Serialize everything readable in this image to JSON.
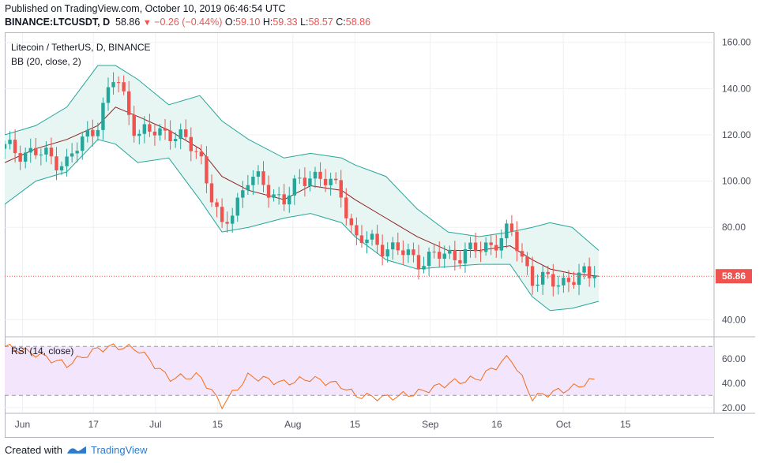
{
  "header": {
    "published": "Published on TradingView.com, October 10, 2019 06:46:54 UTC",
    "symbol": "BINANCE:LTCUSDT, D",
    "last": "58.86",
    "change": "−0.26 (−0.44%)",
    "o_label": "O:",
    "o_value": "59.10",
    "h_label": "H:",
    "h_value": "59.33",
    "l_label": "L:",
    "l_value": "58.57",
    "c_label": "C:",
    "c_value": "58.86"
  },
  "panes": {
    "main_title": "Litecoin / TetherUS, D, BINANCE",
    "bb_label": "BB (20, close, 2)",
    "rsi_label": "RSI (14, close)"
  },
  "footer": {
    "created_with": "Created with",
    "brand": "TradingView"
  },
  "colors": {
    "up": "#26a69a",
    "down": "#ef5350",
    "band_fill": "#e7f6f3",
    "band_line": "#26a69a",
    "basis": "#8d1f1f",
    "rsi_line": "#f36b16",
    "rsi_fill": "#f3e5fb",
    "price_tag": "#ef5350"
  },
  "chart_data": [
    {
      "type": "candlestick",
      "title": "Litecoin / TetherUS, D, BINANCE",
      "indicator": "BB (20, close, 2)",
      "y_axis_ticks": [
        160,
        140,
        120,
        100,
        80,
        40
      ],
      "ylim": [
        33,
        164
      ],
      "x_axis_ticks": [
        "Jun",
        "17",
        "Jul",
        "15",
        "Aug",
        "15",
        "Sep",
        "16",
        "Oct",
        "15"
      ],
      "last_price": "58.86",
      "series": [
        {
          "name": "close",
          "x": [
            "2019-05-28",
            "2019-06-04",
            "2019-06-11",
            "2019-06-18",
            "2019-06-22",
            "2019-06-27",
            "2019-07-04",
            "2019-07-11",
            "2019-07-16",
            "2019-07-22",
            "2019-07-30",
            "2019-08-05",
            "2019-08-12",
            "2019-08-15",
            "2019-08-22",
            "2019-08-29",
            "2019-09-05",
            "2019-09-12",
            "2019-09-19",
            "2019-09-24",
            "2019-09-28",
            "2019-10-03",
            "2019-10-09"
          ],
          "values": [
            114,
            112,
            108,
            126,
            146,
            120,
            122,
            112,
            78,
            102,
            92,
            104,
            95,
            75,
            72,
            66,
            68,
            70,
            78,
            58,
            56,
            58,
            58.86
          ]
        },
        {
          "name": "upper band",
          "values": [
            120,
            124,
            132,
            150,
            150,
            144,
            133,
            137,
            126,
            118,
            110,
            112,
            110,
            107,
            102,
            88,
            78,
            76,
            78,
            80,
            82,
            80,
            70
          ]
        },
        {
          "name": "basis",
          "values": [
            108,
            114,
            118,
            124,
            132,
            128,
            122,
            114,
            102,
            96,
            92,
            98,
            96,
            92,
            84,
            76,
            70,
            70,
            72,
            66,
            62,
            60,
            58.86
          ]
        },
        {
          "name": "lower band",
          "values": [
            90,
            100,
            104,
            118,
            116,
            108,
            110,
            92,
            78,
            80,
            84,
            86,
            82,
            76,
            66,
            62,
            63,
            64,
            64,
            50,
            44,
            45,
            48
          ]
        }
      ]
    },
    {
      "type": "line",
      "title": "RSI (14, close)",
      "y_axis_ticks": [
        60,
        40,
        20
      ],
      "ylim": [
        16,
        76
      ],
      "bands": [
        30,
        70
      ],
      "series": [
        {
          "name": "RSI",
          "values": [
            70,
            64,
            55,
            68,
            70,
            68,
            44,
            46,
            22,
            46,
            40,
            44,
            38,
            30,
            28,
            32,
            40,
            44,
            62,
            28,
            32,
            36,
            44
          ]
        }
      ]
    }
  ]
}
